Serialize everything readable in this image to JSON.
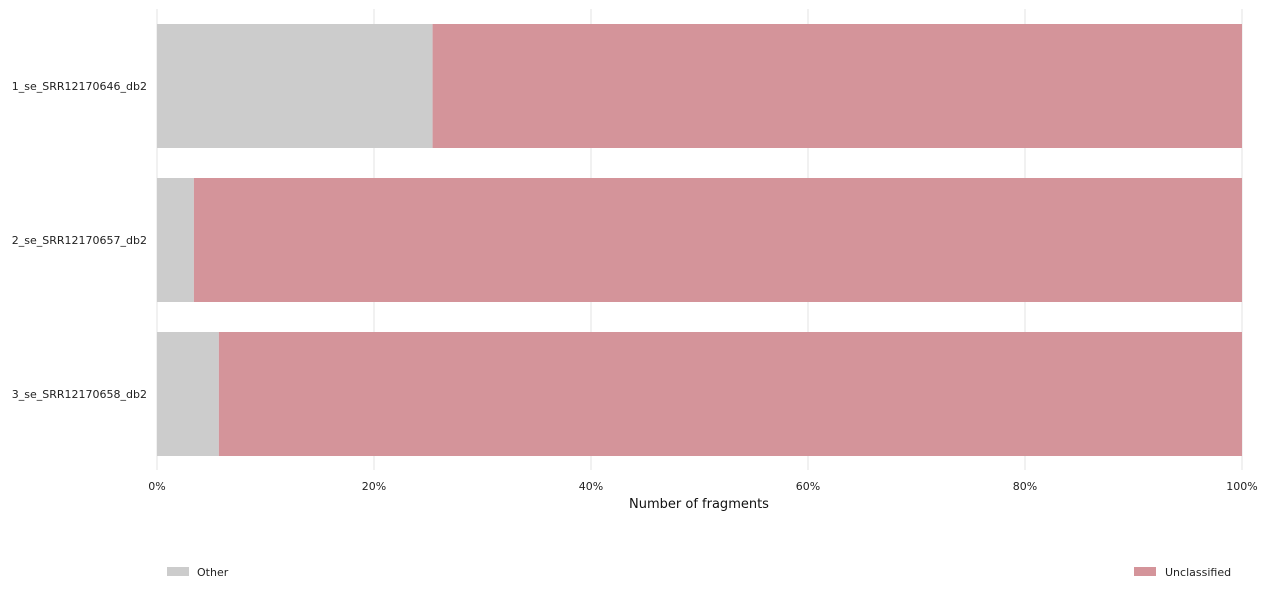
{
  "chart_data": {
    "type": "bar",
    "orientation": "horizontal",
    "stacked": true,
    "normalized": true,
    "categories": [
      "1_se_SRR12170646_db2",
      "2_se_SRR12170657_db2",
      "3_se_SRR12170658_db2"
    ],
    "series": [
      {
        "name": "Other",
        "color": "#cccccc",
        "values": [
          25.4,
          3.4,
          5.7
        ]
      },
      {
        "name": "Unclassified",
        "color": "#d4949a",
        "values": [
          74.6,
          96.6,
          94.3
        ]
      }
    ],
    "xlabel": "Number of fragments",
    "xlim": [
      0,
      100
    ],
    "xticks": [
      "0%",
      "20%",
      "40%",
      "60%",
      "80%",
      "100%"
    ],
    "grid": true,
    "legend": "bottom"
  }
}
